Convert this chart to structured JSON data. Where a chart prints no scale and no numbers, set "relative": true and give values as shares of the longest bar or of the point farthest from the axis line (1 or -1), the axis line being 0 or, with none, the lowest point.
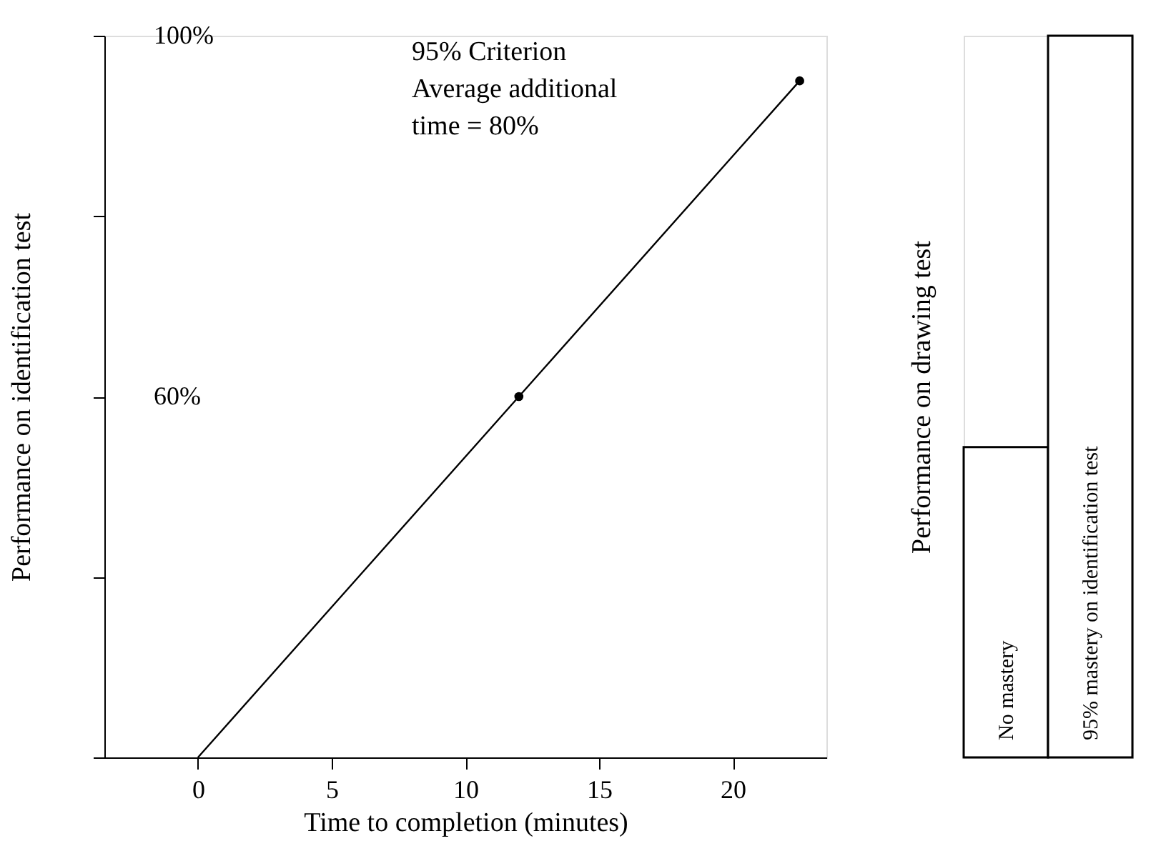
{
  "chart_data": [
    {
      "type": "line",
      "xlabel": "Time to completion (minutes)",
      "ylabel": "Performance on identification test",
      "xlim": [
        -3.5,
        23.5
      ],
      "xticks": [
        0,
        5,
        10,
        15,
        20
      ],
      "ylim": [
        20,
        100
      ],
      "yticks": [
        {
          "value": 20,
          "label": null
        },
        {
          "value": 40,
          "label": null
        },
        {
          "value": 60,
          "label": "60%"
        },
        {
          "value": 80,
          "label": null
        },
        {
          "value": 100,
          "label": "100%"
        }
      ],
      "series": [
        {
          "type": "line",
          "color": "#000000",
          "x": [
            0,
            12,
            22.5
          ],
          "values": [
            20,
            60,
            95
          ],
          "marker": "none",
          "line_style": "solid"
        },
        {
          "type": "scatter",
          "color": "#000000",
          "x": [
            12,
            22.5
          ],
          "values": [
            60,
            95
          ],
          "marker": "circle"
        }
      ],
      "annotations": [
        "95% Criterion\nAverage additional\ntime = 80%"
      ],
      "grid": false
    },
    {
      "type": "bar",
      "ylabel": "Performance on drawing test",
      "categories": [
        "No mastery",
        "95% mastery on identification test"
      ],
      "values": [
        0.43,
        1
      ],
      "color": "#ffffff",
      "relative": true,
      "grid": false
    }
  ]
}
